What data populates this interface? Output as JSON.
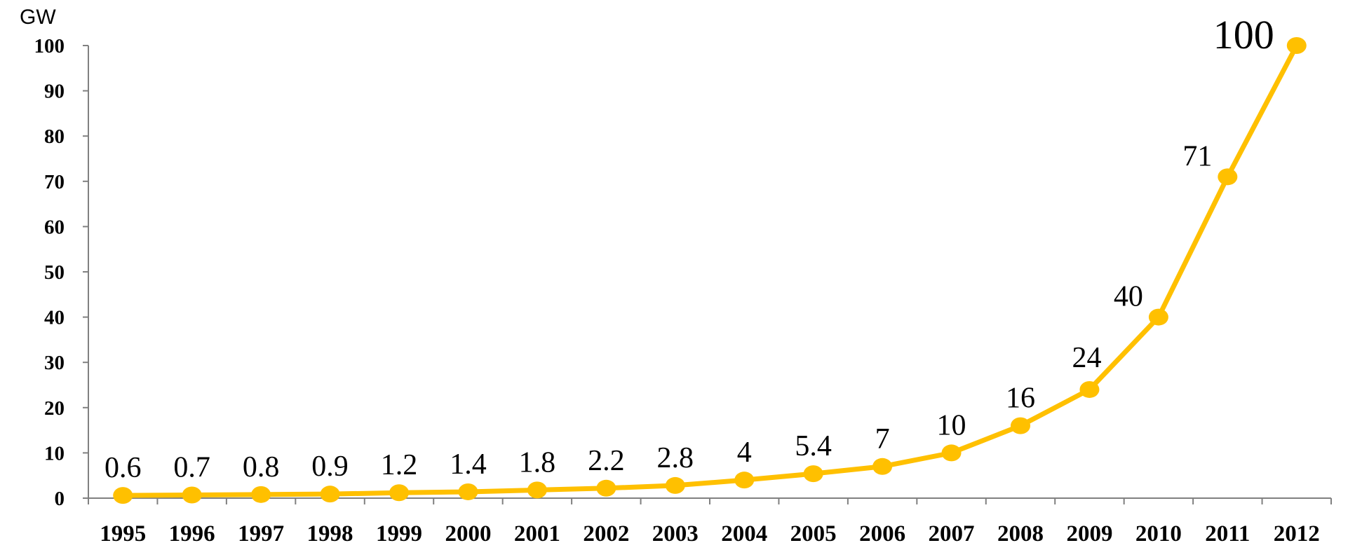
{
  "chart_data": {
    "type": "line",
    "unit_label": "GW",
    "x": [
      "1995",
      "1996",
      "1997",
      "1998",
      "1999",
      "2000",
      "2001",
      "2002",
      "2003",
      "2004",
      "2005",
      "2006",
      "2007",
      "2008",
      "2009",
      "2010",
      "2011",
      "2012"
    ],
    "series": [
      {
        "values": [
          0.6,
          0.7,
          0.8,
          0.9,
          1.2,
          1.4,
          1.8,
          2.2,
          2.8,
          4,
          5.4,
          7,
          10,
          16,
          24,
          40,
          71,
          100
        ],
        "color": "#FFC000"
      }
    ],
    "data_labels": [
      "0.6",
      "0.7",
      "0.8",
      "0.9",
      "1.2",
      "1.4",
      "1.8",
      "2.2",
      "2.8",
      "4",
      "5.4",
      "7",
      "10",
      "16",
      "24",
      "40",
      "71",
      "100"
    ],
    "y_ticks": [
      0,
      10,
      20,
      30,
      40,
      50,
      60,
      70,
      80,
      90,
      100
    ],
    "ylim": [
      0,
      100
    ],
    "grid": false,
    "legend": "none"
  }
}
